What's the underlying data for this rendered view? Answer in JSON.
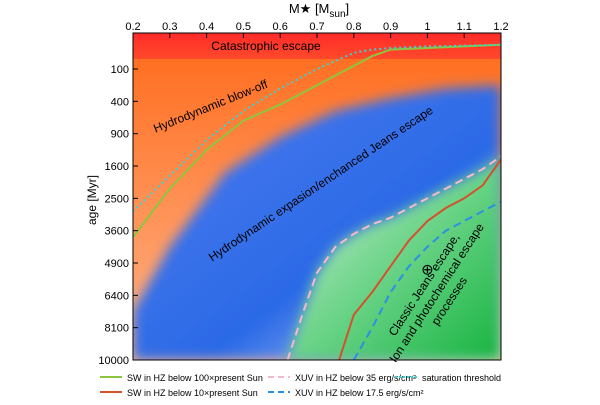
{
  "chart_data": {
    "type": "area",
    "title": "",
    "xlabel": "M★ [M",
    "xlabel_sub": "sun",
    "xlabel_end": "]",
    "ylabel": "age [Myr]",
    "xlim": [
      0.2,
      1.2
    ],
    "y_ticks": [
      "100",
      "400",
      "900",
      "1600",
      "2500",
      "3600",
      "4900",
      "6400",
      "8100",
      "10000"
    ],
    "x_ticks": [
      "0.2",
      "0.3",
      "0.4",
      "0.5",
      "0.6",
      "0.7",
      "0.8",
      "0.9",
      "1",
      "1.1",
      "1.2"
    ],
    "regions": [
      {
        "label": "Catastrophic escape",
        "color": "#2a36c8"
      },
      {
        "label": "Hydrodynamic blow-off",
        "color": "#000000"
      },
      {
        "label": "Hydrodynamic expasion/enchanced Jeans escape",
        "color": "#d9702a"
      },
      {
        "label": "Classic Jeans escape,",
        "color": "#000000"
      },
      {
        "label": "Ion and photochemical escape",
        "color": "#000000"
      },
      {
        "label": "processes",
        "color": "#000000"
      }
    ],
    "earth_symbol": "⊕",
    "earth_point": {
      "x": 1.0,
      "y_index": 6.2
    },
    "series": [
      {
        "name": "SW in HZ below 100×present Sun",
        "color": "#8cc63f",
        "style": "solid",
        "x": [
          0.2,
          0.3,
          0.4,
          0.5,
          0.6,
          0.7,
          0.8,
          0.85,
          0.9,
          1.0,
          1.1,
          1.2
        ],
        "y_index": [
          5.2,
          3.7,
          2.5,
          1.6,
          1.1,
          0.5,
          -0.1,
          -0.4,
          -0.6,
          -0.65,
          -0.7,
          -0.75
        ]
      },
      {
        "name": "SW in HZ below 10×present Sun",
        "color": "#d2522e",
        "style": "solid",
        "x": [
          0.76,
          0.8,
          0.85,
          0.9,
          0.95,
          1.0,
          1.05,
          1.1,
          1.15,
          1.2
        ],
        "y_index": [
          9.0,
          7.6,
          6.9,
          6.1,
          5.3,
          4.7,
          4.3,
          4.0,
          3.6,
          2.8
        ]
      },
      {
        "name": "XUV in HZ below 35 erg/s/cm²",
        "color": "#f7b8c8",
        "style": "dashed",
        "x": [
          0.62,
          0.66,
          0.7,
          0.75,
          0.8,
          0.85,
          0.9,
          0.95,
          1.0,
          1.05,
          1.1,
          1.15,
          1.2
        ],
        "y_index": [
          9.0,
          7.6,
          6.3,
          5.5,
          5.1,
          4.8,
          4.6,
          4.3,
          4.0,
          3.7,
          3.4,
          3.1,
          2.7
        ]
      },
      {
        "name": "XUV in HZ below 17.5 erg/s/cm²",
        "color": "#2b8fe6",
        "style": "dashed",
        "x": [
          0.8,
          0.85,
          0.9,
          0.95,
          1.0,
          1.05,
          1.1,
          1.15,
          1.2
        ],
        "y_index": [
          9.0,
          8.0,
          6.9,
          6.1,
          5.5,
          5.0,
          4.7,
          4.4,
          4.1
        ]
      },
      {
        "name": "saturation threshold",
        "color": "#35d2d6",
        "style": "dotted",
        "x": [
          0.2,
          0.3,
          0.4,
          0.5,
          0.6,
          0.7,
          0.8,
          0.85,
          0.9,
          1.0,
          1.1,
          1.2
        ],
        "y_index": [
          4.4,
          3.3,
          2.2,
          1.3,
          0.6,
          0.0,
          -0.5,
          -0.6,
          -0.65,
          -0.7,
          -0.72,
          -0.75
        ]
      }
    ],
    "legend": {
      "placement": "bottom",
      "columns": 3
    }
  }
}
